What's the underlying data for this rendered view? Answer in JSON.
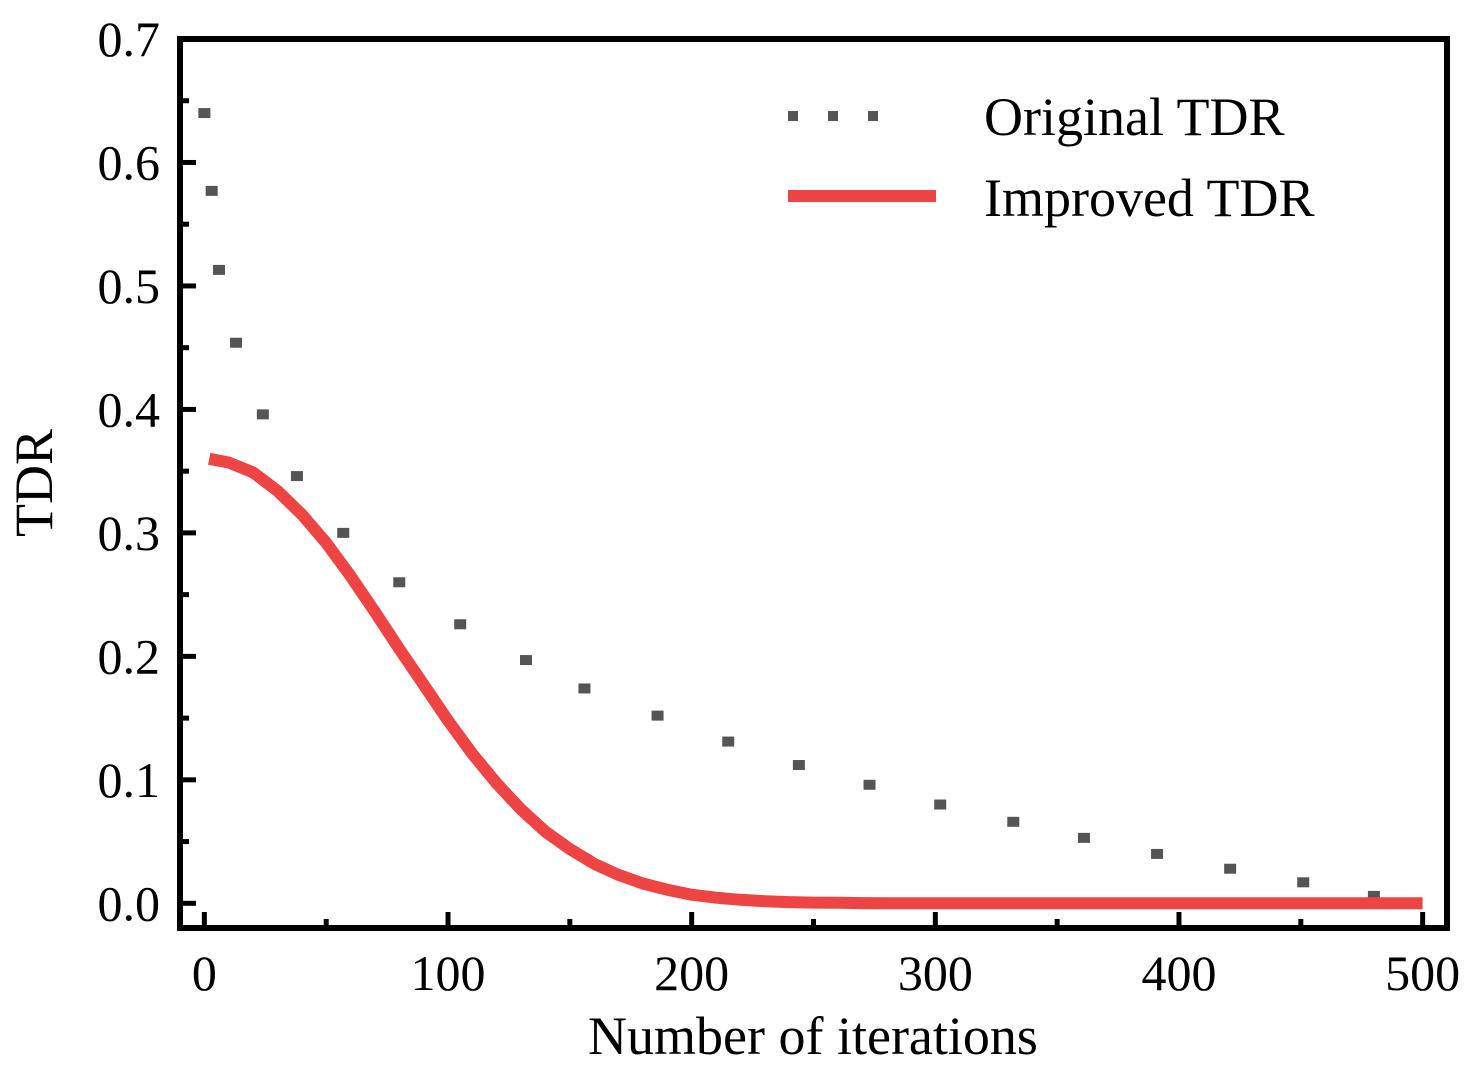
{
  "chart_data": {
    "type": "line",
    "title": "",
    "xlabel": "Number of iterations",
    "ylabel": "TDR",
    "xlim": [
      -10,
      510
    ],
    "ylim": [
      -0.02,
      0.7
    ],
    "xticks": [
      0,
      100,
      200,
      300,
      400,
      500
    ],
    "yticks": [
      0.0,
      0.1,
      0.2,
      0.3,
      0.4,
      0.5,
      0.6,
      0.7
    ],
    "xtick_labels": [
      "0",
      "100",
      "200",
      "300",
      "400",
      "500"
    ],
    "ytick_labels": [
      "0.0",
      "0.1",
      "0.2",
      "0.3",
      "0.4",
      "0.5",
      "0.6",
      "0.7"
    ],
    "grid": false,
    "legend_position": "top-right",
    "series": [
      {
        "name": "Original TDR",
        "style": "dotted",
        "color": "#555555",
        "x": [
          0,
          3,
          6,
          13,
          24,
          38,
          57,
          80,
          105,
          132,
          156,
          186,
          215,
          244,
          273,
          302,
          332,
          361,
          391,
          421,
          451,
          480
        ],
        "y": [
          0.64,
          0.577,
          0.513,
          0.454,
          0.396,
          0.346,
          0.3,
          0.26,
          0.226,
          0.197,
          0.174,
          0.152,
          0.131,
          0.112,
          0.096,
          0.08,
          0.066,
          0.053,
          0.04,
          0.028,
          0.017,
          0.006
        ]
      },
      {
        "name": "Improved TDR",
        "style": "solid",
        "color": "#ef4444",
        "x": [
          2,
          10,
          20,
          30,
          40,
          50,
          60,
          70,
          80,
          90,
          100,
          110,
          120,
          130,
          140,
          150,
          160,
          170,
          180,
          190,
          200,
          210,
          220,
          230,
          240,
          250,
          260,
          270,
          280,
          290,
          300,
          325,
          350,
          375,
          400,
          425,
          450,
          475,
          500
        ],
        "y": [
          0.36,
          0.357,
          0.349,
          0.334,
          0.315,
          0.292,
          0.265,
          0.236,
          0.206,
          0.177,
          0.148,
          0.121,
          0.097,
          0.076,
          0.058,
          0.044,
          0.032,
          0.023,
          0.016,
          0.011,
          0.007,
          0.0045,
          0.0028,
          0.0017,
          0.001,
          0.0006,
          0.0004,
          0.0002,
          0.0001,
          0.0001,
          0.0,
          0.0,
          0.0,
          0.0,
          0.0,
          0.0,
          0.0,
          0.0,
          0.0
        ]
      }
    ]
  }
}
